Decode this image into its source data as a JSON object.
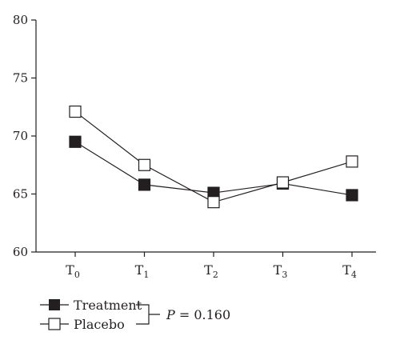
{
  "chart_data": {
    "type": "line",
    "title": "",
    "xlabel": "",
    "ylabel": "",
    "categories": [
      {
        "base": "T",
        "sub": "0"
      },
      {
        "base": "T",
        "sub": "1"
      },
      {
        "base": "T",
        "sub": "2"
      },
      {
        "base": "T",
        "sub": "3"
      },
      {
        "base": "T",
        "sub": "4"
      }
    ],
    "ylim": [
      60,
      80
    ],
    "yticks": [
      "60",
      "65",
      "70",
      "75",
      "80"
    ],
    "grid": false,
    "legend_position": "bottom-left",
    "series": [
      {
        "name": "Treatment",
        "marker": "filled-square",
        "values": [
          69.5,
          65.8,
          65.1,
          65.9,
          64.9
        ]
      },
      {
        "name": "Placebo",
        "marker": "open-square",
        "values": [
          72.1,
          67.5,
          64.3,
          66.0,
          67.8
        ]
      }
    ],
    "annotation": {
      "italic": "P",
      "text": " = 0.160"
    },
    "colors": {
      "ink": "#231f20",
      "background": "#ffffff"
    }
  }
}
